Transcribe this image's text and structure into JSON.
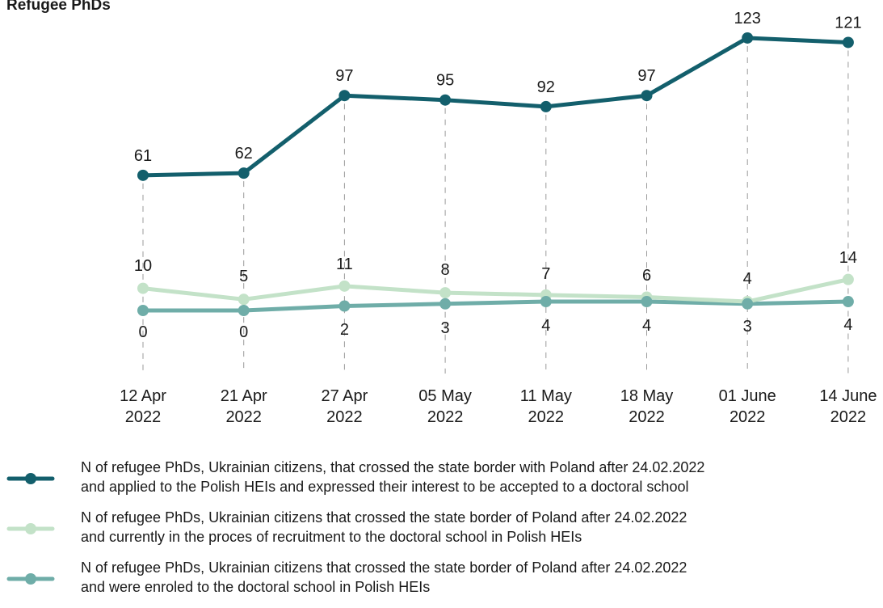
{
  "title": "Refugee PhDs",
  "chart_data": {
    "type": "line",
    "title": "Refugee PhDs",
    "categories": [
      [
        "12 Apr",
        "2022"
      ],
      [
        "21 Apr",
        "2022"
      ],
      [
        "27 Apr",
        "2022"
      ],
      [
        "05 May",
        "2022"
      ],
      [
        "11 May",
        "2022"
      ],
      [
        "18 May",
        "2022"
      ],
      [
        "01 June",
        "2022"
      ],
      [
        "14 June",
        "2022"
      ]
    ],
    "series": [
      {
        "name_lines": [
          "N of refugee PhDs, Ukrainian citizens, that crossed the state border with Poland after 24.02.2022",
          "and applied to the Polish HEIs and expressed their interest to be accepted to a doctoral school"
        ],
        "color": "#135f6c",
        "values": [
          61,
          62,
          97,
          95,
          92,
          97,
          123,
          121
        ]
      },
      {
        "name_lines": [
          "N of refugee PhDs, Ukrainian citizens that crossed the state border of Poland after 24.02.2022",
          "and currently in the proces of recruitment to the doctoral school in Polish HEIs"
        ],
        "color": "#c3e2c8",
        "values": [
          10,
          5,
          11,
          8,
          7,
          6,
          4,
          14
        ]
      },
      {
        "name_lines": [
          "N of refugee PhDs, Ukrainian citizens that crossed the state border of Poland after 24.02.2022",
          "and were enroled to the doctoral school in Polish HEIs"
        ],
        "color": "#6fada8",
        "values": [
          0,
          0,
          2,
          3,
          4,
          4,
          3,
          4
        ]
      }
    ],
    "gridlines": "vertical dashed",
    "legend_position": "bottom"
  }
}
